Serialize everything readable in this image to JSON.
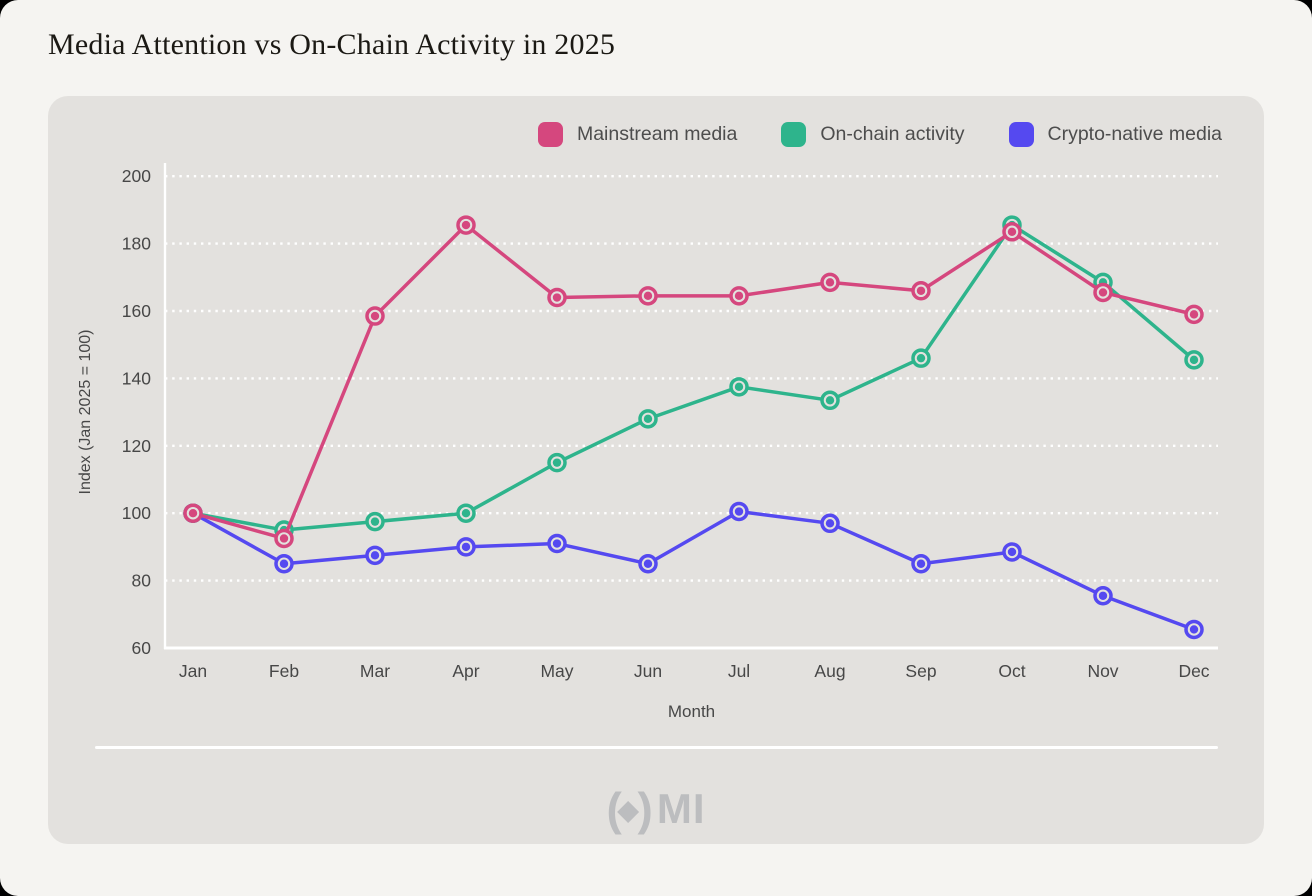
{
  "page": {
    "title": "Media Attention vs On-Chain Activity in 2025"
  },
  "watermark": {
    "paren_open": "(",
    "diamond": "◆",
    "paren_close": ")",
    "text": "MI"
  },
  "colors": {
    "screen_bg": "#f5f4f1",
    "card_bg": "#e3e1de",
    "grid_axis": "#ffffff",
    "tick_text": "#474747",
    "legend_text": "#4d4d4d",
    "title_text": "#1b1914",
    "watermark": "#bcbdbf",
    "mainstream": "#d5477e",
    "onchain": "#2eb48c",
    "crypto_native": "#5549f0"
  },
  "chart_data": {
    "type": "line",
    "title": "Media Attention vs On-Chain Activity in 2025",
    "xlabel": "Month",
    "ylabel": "Index (Jan 2025 = 100)",
    "categories": [
      "Jan",
      "Feb",
      "Mar",
      "Apr",
      "May",
      "Jun",
      "Jul",
      "Aug",
      "Sep",
      "Oct",
      "Nov",
      "Dec"
    ],
    "ylim": [
      60,
      200
    ],
    "ytick_step": 20,
    "yticks": [
      60,
      80,
      100,
      120,
      140,
      160,
      180,
      200
    ],
    "grid": "dotted-horizontal-white",
    "legend_position": "top-right",
    "marker": "ring-dot",
    "series": [
      {
        "name": "Mainstream media",
        "color": "#d5477e",
        "values": [
          100,
          92.5,
          158.5,
          185.5,
          164,
          164.5,
          164.5,
          168.5,
          166,
          183.5,
          165.5,
          159
        ]
      },
      {
        "name": "On-chain activity",
        "color": "#2eb48c",
        "values": [
          100,
          95,
          97.5,
          100,
          115,
          128,
          137.5,
          133.5,
          146,
          185.5,
          168.5,
          145.5
        ]
      },
      {
        "name": "Crypto-native media",
        "color": "#5549f0",
        "values": [
          100,
          85,
          87.5,
          90,
          91,
          85,
          100.5,
          97,
          85,
          88.5,
          75.5,
          65.5
        ]
      }
    ]
  }
}
